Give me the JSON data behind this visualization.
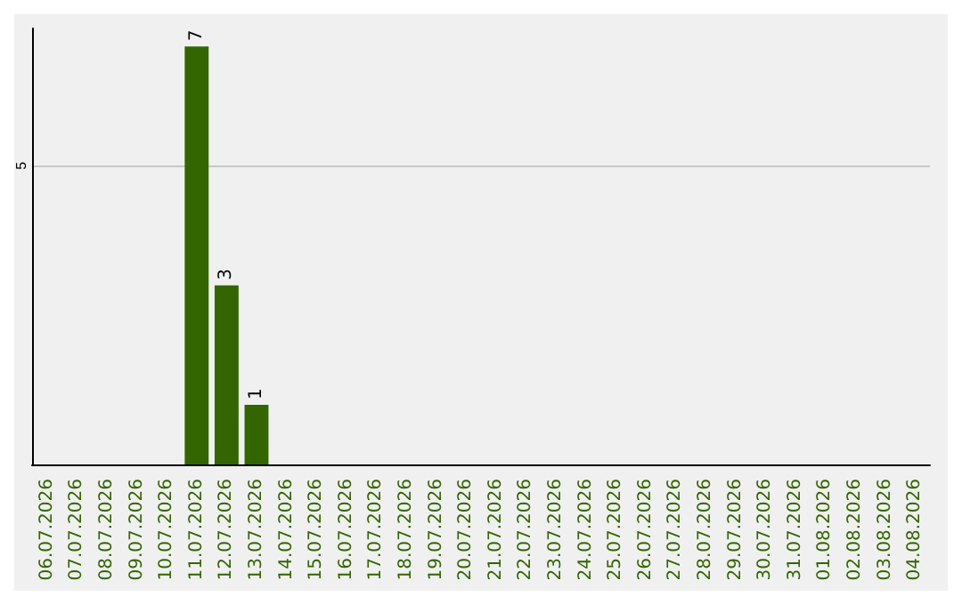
{
  "chart_data": {
    "type": "bar",
    "categories": [
      "06.07.2026",
      "07.07.2026",
      "08.07.2026",
      "09.07.2026",
      "10.07.2026",
      "11.07.2026",
      "12.07.2026",
      "13.07.2026",
      "14.07.2026",
      "15.07.2026",
      "16.07.2026",
      "17.07.2026",
      "18.07.2026",
      "19.07.2026",
      "20.07.2026",
      "21.07.2026",
      "22.07.2026",
      "23.07.2026",
      "24.07.2026",
      "25.07.2026",
      "26.07.2026",
      "27.07.2026",
      "28.07.2026",
      "29.07.2026",
      "30.07.2026",
      "31.07.2026",
      "01.08.2026",
      "02.08.2026",
      "03.08.2026",
      "04.08.2026"
    ],
    "values": [
      0,
      0,
      0,
      0,
      0,
      7,
      3,
      1,
      0,
      0,
      0,
      0,
      0,
      0,
      0,
      0,
      0,
      0,
      0,
      0,
      0,
      0,
      0,
      0,
      0,
      0,
      0,
      0,
      0,
      0
    ],
    "value_labels": [
      null,
      null,
      null,
      null,
      null,
      "7",
      "3",
      "1",
      null,
      null,
      null,
      null,
      null,
      null,
      null,
      null,
      null,
      null,
      null,
      null,
      null,
      null,
      null,
      null,
      null,
      null,
      null,
      null,
      null,
      null
    ],
    "color": "#336600",
    "ylim": [
      0,
      7.3
    ],
    "yticks": [
      5
    ],
    "grid": "y"
  }
}
